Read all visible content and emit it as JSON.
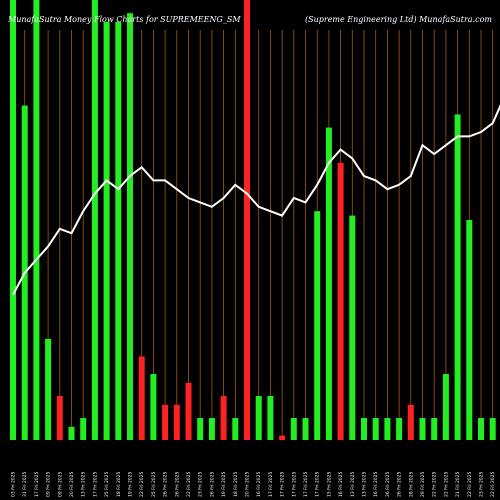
{
  "chart_data": {
    "type": "bar",
    "title": "MunafaSutra  Money Flow  Charts for SUPREMEENG_SM",
    "subtitle": "(Supreme   Engineering Ltd) MunafaSutra.com",
    "categories": [
      "03 Fri 2025",
      "31 Fri 2025",
      "17 Fri 2025",
      "09 Fri 2025",
      "09 Fri 2025",
      "20 Fri 2025",
      "13 Fri 2025",
      "17 Fri 2025",
      "25 Fri 2025",
      "18 Fri 2025",
      "19 Fri 2025",
      "22 Fri 2025",
      "25 Fri 2025",
      "26 Fri 2025",
      "26 Fri 2025",
      "22 Fri 2025",
      "23 Fri 2025",
      "26 Fri 2025",
      "19 Fri 2025",
      "18 Fri 2025",
      "20 Fri 2025",
      "16 Fri 2025",
      "17 Fri 2025",
      "17 Fri 2025",
      "17 Fri 2025",
      "17 Fri 2025",
      "17 Fri 2025",
      "15 Fri 2025",
      "16 Fri 2025",
      "13 Fri 2025",
      "13 Fri 2025",
      "16 Fri 2025",
      "26 Fri 2025",
      "26 Fri 2025",
      "28 Fri 2025",
      "29 Fri 2025",
      "22 Fri 2025",
      "22 Fri 2025",
      "21 Fri 2025",
      "22 Fri 2025",
      "23 Fri 2025",
      "22 Fri 2025",
      "22 Fri 2025"
    ],
    "values": [
      100,
      76,
      100,
      23,
      10,
      3,
      5,
      100,
      95,
      95,
      97,
      19,
      15,
      8,
      8,
      13,
      5,
      5,
      10,
      5,
      100,
      10,
      10,
      1,
      5,
      5,
      52,
      71,
      63,
      51,
      5,
      5,
      5,
      5,
      8,
      5,
      5,
      15,
      74,
      50,
      5,
      5,
      5
    ],
    "colors": [
      "green",
      "green",
      "green",
      "green",
      "red",
      "green",
      "green",
      "green",
      "green",
      "green",
      "green",
      "red",
      "green",
      "red",
      "red",
      "red",
      "green",
      "green",
      "red",
      "green",
      "red",
      "green",
      "green",
      "red",
      "green",
      "green",
      "green",
      "green",
      "red",
      "green",
      "green",
      "green",
      "green",
      "green",
      "red",
      "green",
      "green",
      "green",
      "green",
      "green",
      "green",
      "green",
      "green"
    ],
    "line": [
      33,
      38,
      41,
      44,
      48,
      47,
      52,
      56,
      59,
      57,
      60,
      62,
      59,
      59,
      57,
      55,
      54,
      53,
      55,
      58,
      56,
      53,
      52,
      51,
      55,
      54,
      58,
      63,
      66,
      64,
      60,
      59,
      57,
      58,
      60,
      67,
      65,
      67,
      69,
      69,
      70,
      72,
      78
    ],
    "ylim": [
      0,
      100
    ],
    "legend": "none",
    "grid": "vertical"
  },
  "palette": {
    "background": "#000000",
    "green": "#22ee22",
    "red": "#ff2222",
    "grid": "#a05a10",
    "line": "#ffffff"
  }
}
